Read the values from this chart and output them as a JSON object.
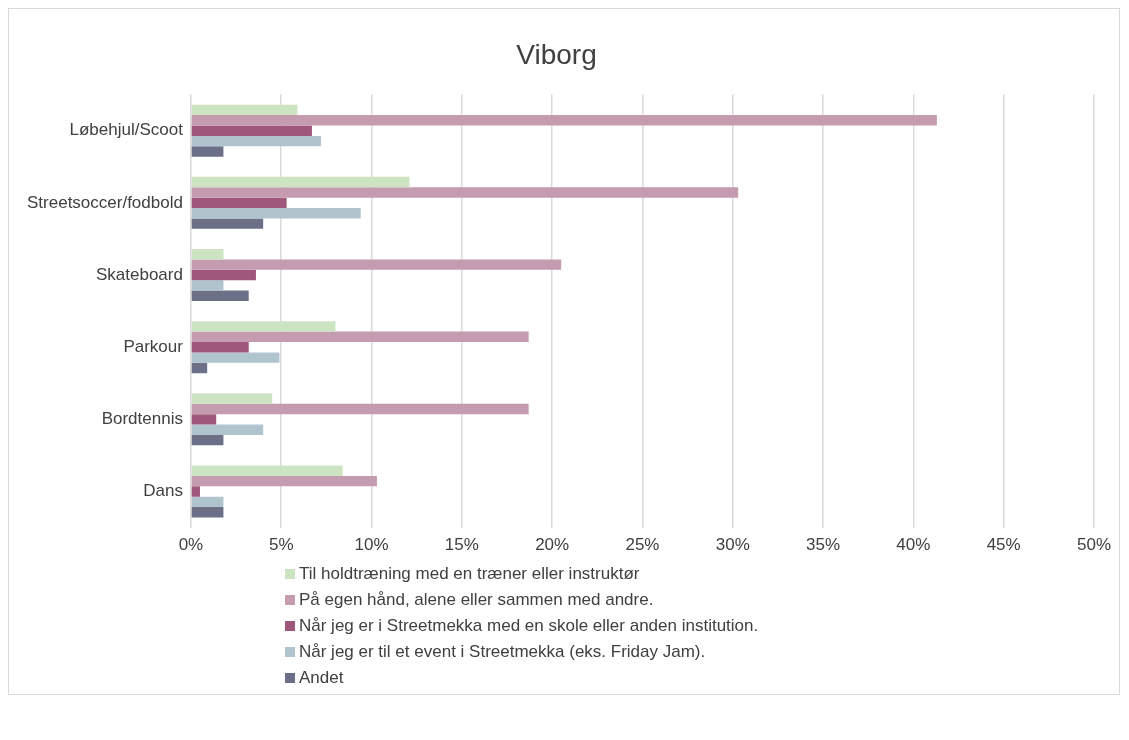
{
  "chart_data": {
    "type": "bar",
    "title": "Viborg",
    "orientation": "horizontal",
    "categories": [
      "Løbehjul/Scoot",
      "Streetsoccer/fodbold",
      "Skateboard",
      "Parkour",
      "Bordtennis",
      "Dans"
    ],
    "series": [
      {
        "name": "Til holdtræning med en træner eller instruktør",
        "color": "#cde4c3",
        "values": [
          5.9,
          12.1,
          1.8,
          8.0,
          4.5,
          8.4
        ]
      },
      {
        "name": "På egen hånd, alene eller sammen med andre.",
        "color": "#c59bb0",
        "values": [
          41.3,
          30.3,
          20.5,
          18.7,
          18.7,
          10.3
        ]
      },
      {
        "name": "Når jeg er i Streetmekka med en skole eller anden institution.",
        "color": "#a0577c",
        "values": [
          6.7,
          5.3,
          3.6,
          3.2,
          1.4,
          0.5
        ]
      },
      {
        "name": "Når jeg er til et event i Streetmekka (eks. Friday Jam).",
        "color": "#b0c4cd",
        "values": [
          7.2,
          9.4,
          1.8,
          4.9,
          4.0,
          1.8
        ]
      },
      {
        "name": "Andet",
        "color": "#6b7088",
        "values": [
          1.8,
          4.0,
          3.2,
          0.9,
          1.8,
          1.8
        ]
      }
    ],
    "xlim": [
      0,
      50
    ],
    "xticks": [
      {
        "value": 0,
        "label": "0%"
      },
      {
        "value": 5,
        "label": "5%"
      },
      {
        "value": 10,
        "label": "10%"
      },
      {
        "value": 15,
        "label": "15%"
      },
      {
        "value": 20,
        "label": "20%"
      },
      {
        "value": 25,
        "label": "25%"
      },
      {
        "value": 30,
        "label": "30%"
      },
      {
        "value": 35,
        "label": "35%"
      },
      {
        "value": 40,
        "label": "40%"
      },
      {
        "value": 45,
        "label": "45%"
      },
      {
        "value": 50,
        "label": "50%"
      }
    ],
    "grid": "x",
    "legend": "bottom"
  }
}
